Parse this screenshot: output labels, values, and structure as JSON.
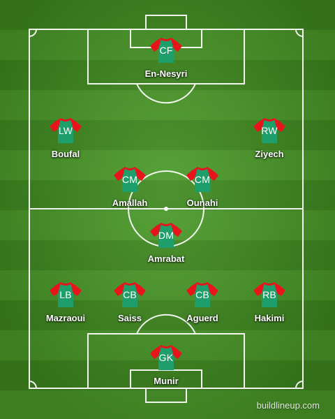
{
  "formation": {
    "players": [
      {
        "id": "cf",
        "position": "CF",
        "name": "En-Nesyri"
      },
      {
        "id": "lw",
        "position": "LW",
        "name": "Boufal"
      },
      {
        "id": "rw",
        "position": "RW",
        "name": "Ziyech"
      },
      {
        "id": "cm-left",
        "position": "CM",
        "name": "Amallah"
      },
      {
        "id": "cm-right",
        "position": "CM",
        "name": "Ounahi"
      },
      {
        "id": "dm",
        "position": "DM",
        "name": "Amrabat"
      },
      {
        "id": "lb",
        "position": "LB",
        "name": "Mazraoui"
      },
      {
        "id": "cb-left",
        "position": "CB",
        "name": "Saiss"
      },
      {
        "id": "cb-right",
        "position": "CB",
        "name": "Aguerd"
      },
      {
        "id": "rb",
        "position": "RB",
        "name": "Hakimi"
      },
      {
        "id": "gk",
        "position": "GK",
        "name": "Munir"
      }
    ]
  },
  "kit": {
    "body_color": "#1e9e6a",
    "sleeve_color": "#e8141c"
  },
  "pitch": {
    "line_color": "#ffffff"
  },
  "watermark": "buildlineup.com"
}
